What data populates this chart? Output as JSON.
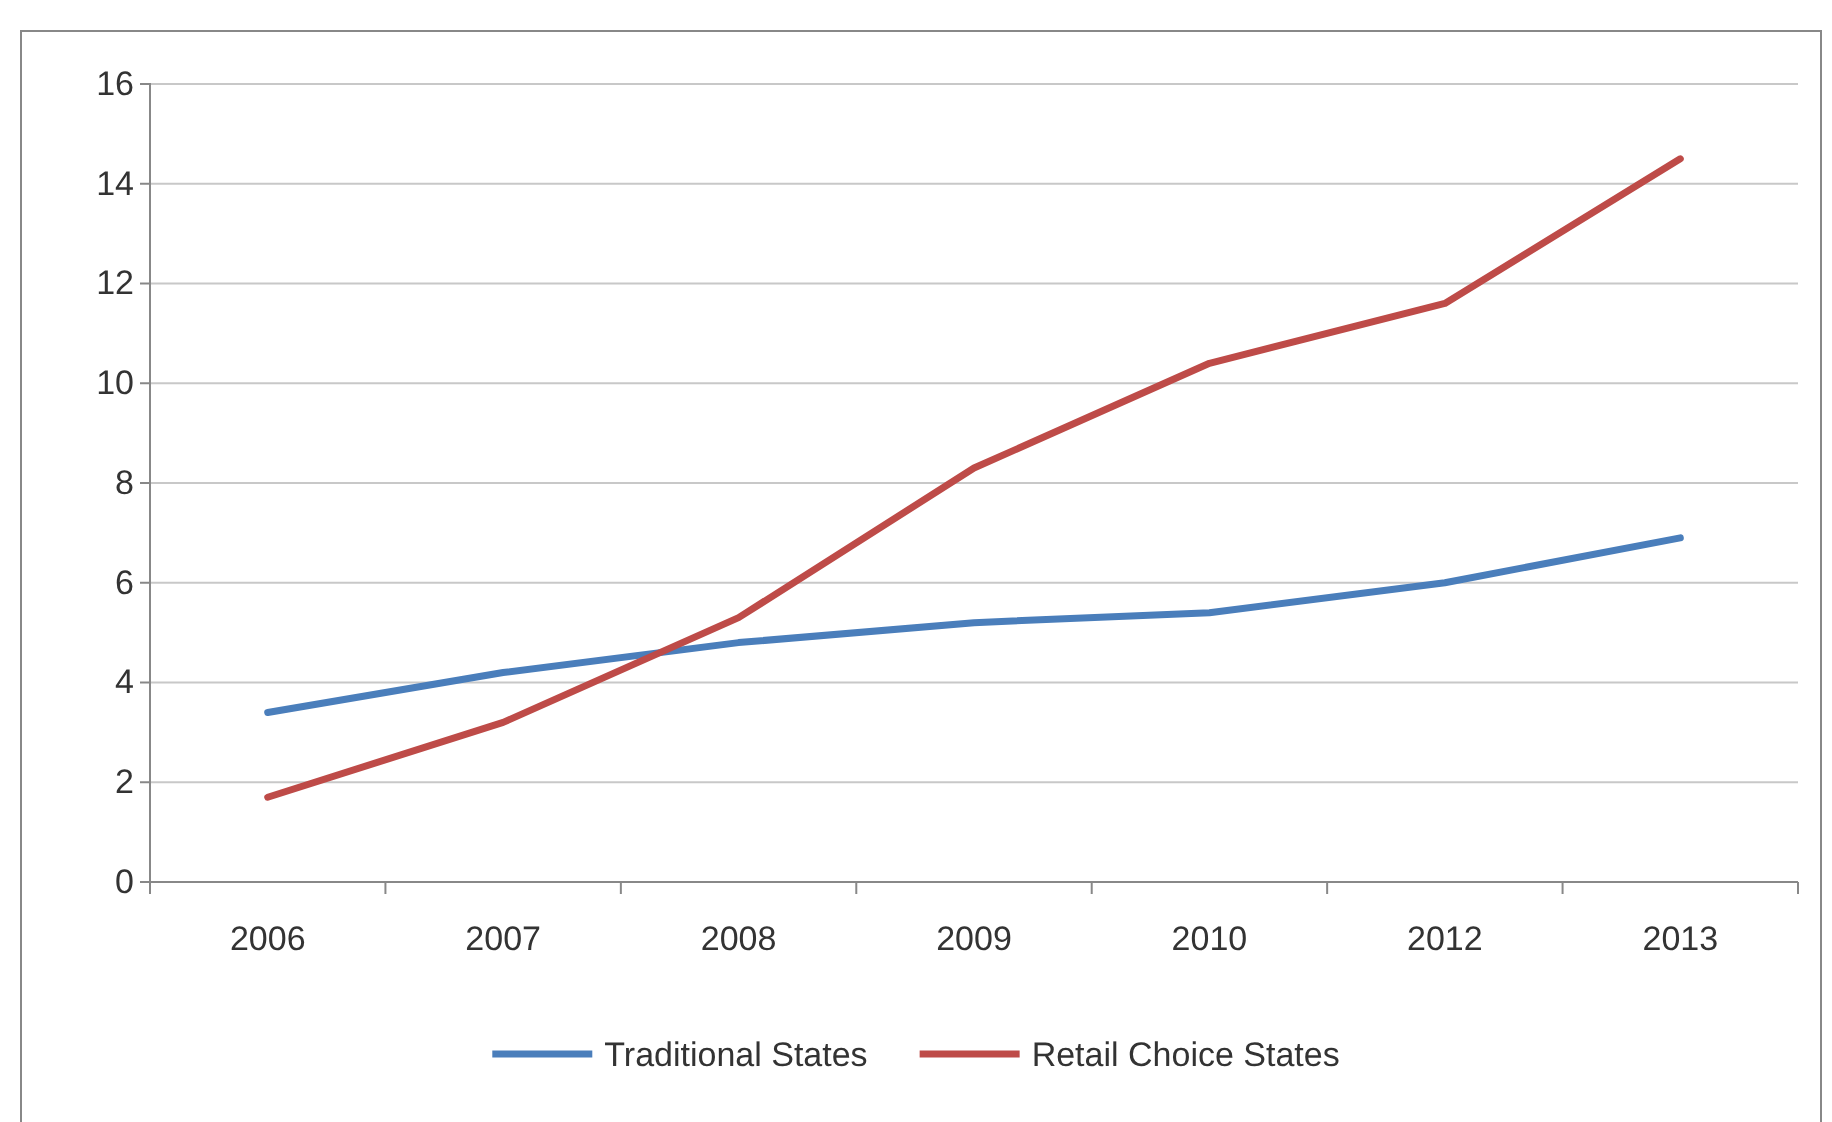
{
  "chart_data": {
    "type": "line",
    "categories": [
      "2006",
      "2007",
      "2008",
      "2009",
      "2010",
      "2012",
      "2013"
    ],
    "series": [
      {
        "name": "Traditional States",
        "color": "#4a7ebb",
        "values": [
          3.4,
          4.2,
          4.8,
          5.2,
          5.4,
          6.0,
          6.9
        ]
      },
      {
        "name": "Retail Choice States",
        "color": "#be4b48",
        "values": [
          1.7,
          3.2,
          5.3,
          8.3,
          10.4,
          11.6,
          14.5
        ]
      }
    ],
    "ylim": [
      0,
      16
    ],
    "yticks": [
      0,
      2,
      4,
      6,
      8,
      10,
      12,
      14,
      16
    ],
    "grid": "y",
    "legend": "bottom",
    "marker": "none",
    "line_style": "solid"
  }
}
